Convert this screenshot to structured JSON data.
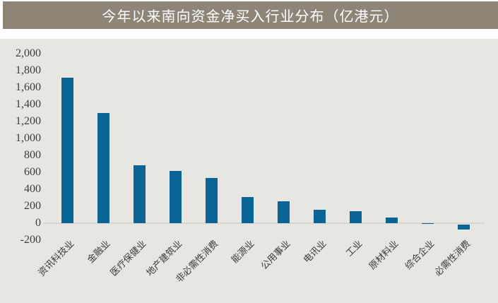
{
  "title": "今年以来南向资金净买入行业分布（亿港元）",
  "colors": {
    "banner_bg": "#8e8578",
    "banner_text": "#ffffff",
    "chart_bg": "#e8e6e3",
    "bar": "#0a6496",
    "axis_line": "#d7d5d2",
    "tick_text": "#3d3c3a"
  },
  "chart_data": {
    "type": "bar",
    "title": "今年以来南向资金净买入行业分布（亿港元）",
    "unit": "亿港元",
    "categories": [
      "资讯科技业",
      "金融业",
      "医疗保健业",
      "地产建筑业",
      "非必需性消费",
      "能源业",
      "公用事业",
      "电讯业",
      "工业",
      "原材料业",
      "综合企业",
      "必需性消费"
    ],
    "values": [
      1717,
      1300,
      682,
      613,
      534,
      311,
      256,
      156,
      139,
      69,
      2,
      -56
    ],
    "y_ticks": [
      2000,
      1800,
      1600,
      1400,
      1200,
      1000,
      800,
      600,
      400,
      200,
      0,
      -200
    ],
    "ylim": [
      -200,
      2000
    ],
    "xlabel": "",
    "ylabel": "",
    "grid": false,
    "legend": "none"
  }
}
